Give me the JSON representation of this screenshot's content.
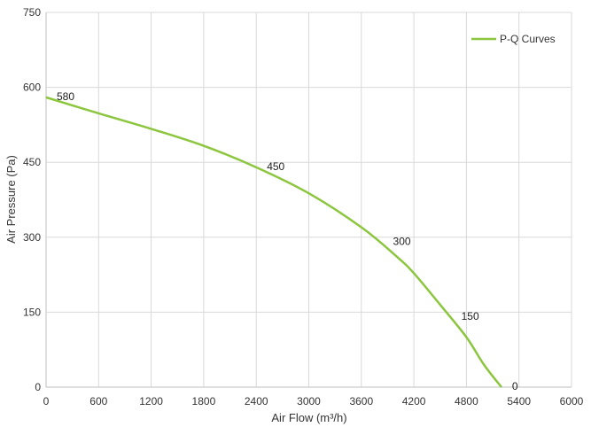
{
  "chart_data": {
    "type": "line",
    "xlabel": "Air Flow  (m³/h)",
    "ylabel": "Air Pressure  (Pa)",
    "xlim": [
      0,
      6000
    ],
    "ylim": [
      0,
      750
    ],
    "x_ticks": [
      "0",
      "600",
      "1200",
      "1800",
      "2400",
      "3000",
      "3600",
      "4200",
      "4800",
      "5400",
      "6000"
    ],
    "y_ticks": [
      "0",
      "150",
      "300",
      "450",
      "600",
      "750"
    ],
    "grid": true,
    "legend_position": "top-right",
    "series": [
      {
        "name": "P-Q Curves",
        "color": "#8cc63f",
        "x": [
          0,
          600,
          1200,
          1800,
          2400,
          3000,
          3600,
          4000,
          4200,
          4500,
          4800,
          5000,
          5200
        ],
        "y": [
          580,
          548,
          517,
          483,
          440,
          388,
          320,
          262,
          228,
          165,
          100,
          45,
          0
        ]
      }
    ],
    "annotations": [
      {
        "text": "580",
        "x": 0,
        "y": 580
      },
      {
        "text": "450",
        "x": 2400,
        "y": 440
      },
      {
        "text": "300",
        "x": 3840,
        "y": 290
      },
      {
        "text": "150",
        "x": 4620,
        "y": 140
      },
      {
        "text": "0",
        "x": 5200,
        "y": 0
      }
    ]
  }
}
